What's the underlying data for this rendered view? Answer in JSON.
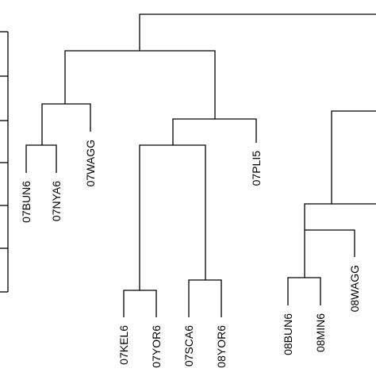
{
  "leaves": {
    "l1": "07BUN6",
    "l2": "07NYA6",
    "l3": "07WAGG",
    "l4": "07KEL6",
    "l5": "07YOR6",
    "l6": "07SCA6",
    "l7": "08YOR6",
    "l8": "07PLI5",
    "l9": "08BUN6",
    "l10": "08MIN6",
    "l11": "08WAGG"
  },
  "colors": {
    "line": "#000000",
    "background": "#ffffff"
  }
}
